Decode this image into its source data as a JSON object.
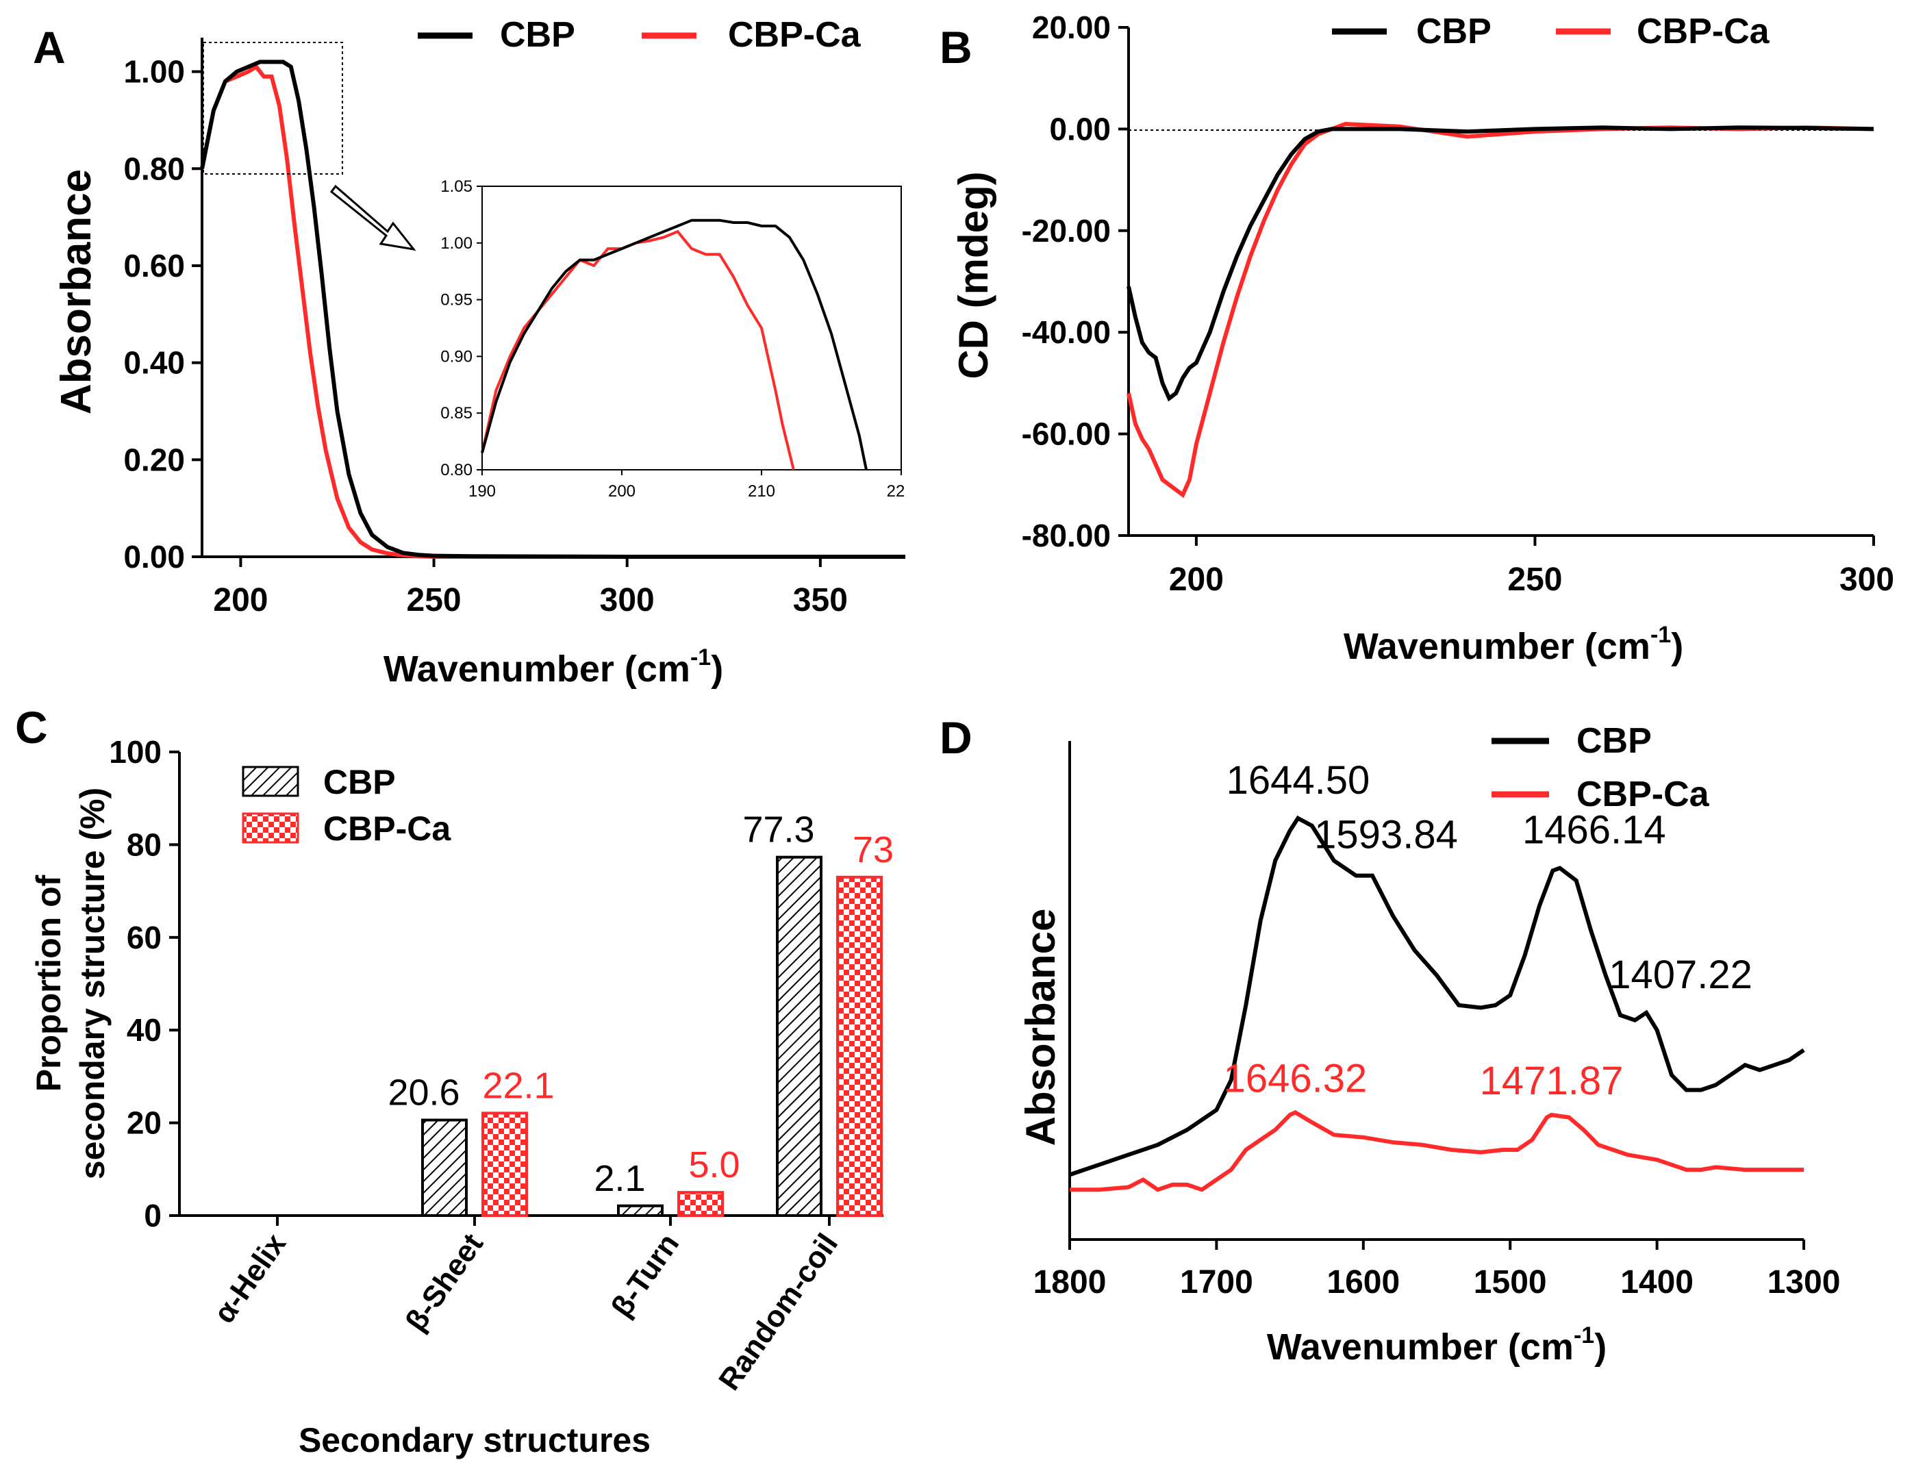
{
  "colors": {
    "cbp": "#000000",
    "cbpca": "#ff2a2a"
  },
  "chart_data": [
    {
      "panel": "A",
      "type": "line",
      "xlabel_main": "Wavenumber (cm",
      "xlabel_sup": "-1",
      "xlabel_close": ")",
      "ylabel": "Absorbance",
      "xlim": [
        190,
        372
      ],
      "ylim": [
        0,
        1.07
      ],
      "xticks": [
        "200",
        "250",
        "300",
        "350"
      ],
      "yticks": [
        "0.00",
        "0.20",
        "0.40",
        "0.60",
        "0.80",
        "1.00"
      ],
      "legend": [
        "CBP",
        "CBP-Ca"
      ],
      "series": [
        {
          "name": "CBP",
          "x": [
            190,
            193,
            196,
            199,
            202,
            205,
            208,
            211,
            213,
            215,
            217,
            219,
            221,
            223,
            225,
            228,
            231,
            234,
            238,
            242,
            246,
            250,
            260,
            300,
            372
          ],
          "y": [
            0.8,
            0.92,
            0.98,
            1.0,
            1.01,
            1.02,
            1.02,
            1.02,
            1.01,
            0.94,
            0.84,
            0.72,
            0.58,
            0.43,
            0.3,
            0.17,
            0.09,
            0.045,
            0.02,
            0.008,
            0.004,
            0.002,
            0.001,
            0.0,
            0.0
          ]
        },
        {
          "name": "CBP-Ca",
          "x": [
            190,
            193,
            196,
            199,
            202,
            204,
            206,
            208,
            210,
            212,
            214,
            216,
            218,
            220,
            222,
            225,
            228,
            231,
            234,
            238,
            242,
            246,
            250,
            300,
            372
          ],
          "y": [
            0.8,
            0.92,
            0.98,
            0.99,
            1.0,
            1.01,
            0.99,
            0.99,
            0.93,
            0.82,
            0.68,
            0.55,
            0.42,
            0.31,
            0.22,
            0.12,
            0.06,
            0.03,
            0.015,
            0.007,
            0.003,
            0.001,
            0.0,
            0.0,
            0.0
          ]
        }
      ],
      "inset": {
        "xlim": [
          190,
          220
        ],
        "ylim": [
          0.8,
          1.05
        ],
        "xticks": [
          "190",
          "200",
          "210",
          "22"
        ],
        "yticks": [
          "0.80",
          "0.85",
          "0.90",
          "0.95",
          "1.00",
          "1.05"
        ],
        "series": [
          {
            "name": "CBP",
            "x": [
              190,
              191,
              192,
              193,
              194,
              195,
              196,
              197,
              198,
              199,
              200,
              201,
              202,
              203,
              204,
              205,
              206,
              207,
              208,
              209,
              210,
              211,
              212,
              213,
              214,
              215,
              216,
              217,
              217.5
            ],
            "y": [
              0.815,
              0.86,
              0.895,
              0.92,
              0.94,
              0.96,
              0.975,
              0.985,
              0.985,
              0.99,
              0.995,
              1.0,
              1.005,
              1.01,
              1.015,
              1.02,
              1.02,
              1.02,
              1.018,
              1.018,
              1.015,
              1.015,
              1.005,
              0.985,
              0.955,
              0.92,
              0.875,
              0.83,
              0.8
            ]
          },
          {
            "name": "CBP-Ca",
            "x": [
              190,
              191,
              192,
              193,
              194,
              195,
              196,
              197,
              198,
              199,
              200,
              201,
              202,
              203,
              204,
              205,
              206,
              207,
              208,
              209,
              210,
              211,
              211.5,
              212.3
            ],
            "y": [
              0.815,
              0.87,
              0.9,
              0.925,
              0.94,
              0.955,
              0.97,
              0.985,
              0.98,
              0.995,
              0.995,
              1.0,
              1.002,
              1.005,
              1.01,
              0.995,
              0.99,
              0.99,
              0.97,
              0.945,
              0.925,
              0.87,
              0.84,
              0.8
            ]
          }
        ]
      }
    },
    {
      "panel": "B",
      "type": "line",
      "xlabel_main": "Wavenumber (cm",
      "xlabel_sup": "-1",
      "xlabel_close": ")",
      "ylabel": "CD (mdeg)",
      "xlim": [
        190,
        300
      ],
      "ylim": [
        -80,
        20
      ],
      "xticks": [
        "200",
        "250",
        "300"
      ],
      "yticks": [
        "-80.00",
        "-60.00",
        "-40.00",
        "-20.00",
        "0.00",
        "20.00"
      ],
      "legend": [
        "CBP",
        "CBP-Ca"
      ],
      "series": [
        {
          "name": "CBP",
          "x": [
            190,
            191,
            192,
            193,
            194,
            195,
            196,
            197,
            198,
            199,
            200,
            202,
            204,
            206,
            208,
            210,
            212,
            214,
            216,
            218,
            220,
            230,
            240,
            250,
            260,
            270,
            280,
            290,
            300
          ],
          "y": [
            -31,
            -37,
            -42,
            -44,
            -45,
            -50,
            -53,
            -52,
            -49,
            -47,
            -46,
            -40,
            -32,
            -25,
            -19,
            -14,
            -9,
            -5,
            -2,
            -0.5,
            0,
            0,
            -0.5,
            0,
            0.3,
            0,
            0.3,
            0.2,
            0
          ]
        },
        {
          "name": "CBP-Ca",
          "x": [
            190,
            191,
            192,
            193,
            194,
            195,
            196,
            197,
            198,
            199,
            200,
            202,
            204,
            206,
            208,
            210,
            212,
            214,
            216,
            218,
            220,
            222,
            230,
            240,
            250,
            260,
            270,
            280,
            290,
            300
          ],
          "y": [
            -52,
            -58,
            -61,
            -63,
            -66,
            -69,
            -70,
            -71,
            -72,
            -69,
            -62,
            -52,
            -42,
            -33,
            -25,
            -18,
            -12,
            -7,
            -3,
            -1,
            0,
            1,
            0.5,
            -1.5,
            -0.5,
            0,
            0.3,
            0,
            0.3,
            0
          ]
        }
      ]
    },
    {
      "panel": "C",
      "type": "bar",
      "xlabel": "Secondary structures",
      "ylabel_line1": "Proportion of",
      "ylabel_line2": "secondary structure (%)",
      "ylim": [
        0,
        100
      ],
      "yticks": [
        "0",
        "20",
        "40",
        "60",
        "80",
        "100"
      ],
      "categories": [
        "α-Helix",
        "β-Sheet",
        "β-Turn",
        "Random-coil"
      ],
      "series": [
        {
          "name": "CBP",
          "values": [
            0,
            20.6,
            2.1,
            77.3
          ],
          "labels": [
            "",
            "20.6",
            "2.1",
            "77.3"
          ]
        },
        {
          "name": "CBP-Ca",
          "values": [
            0,
            22.1,
            5.0,
            73
          ],
          "labels": [
            "",
            "22.1",
            "5.0",
            "73"
          ]
        }
      ]
    },
    {
      "panel": "D",
      "type": "line",
      "xlabel_main": "Wavenumber (cm",
      "xlabel_sup": "-1",
      "xlabel_close": ")",
      "ylabel": "Absorbance",
      "xlim": [
        1800,
        1300
      ],
      "ylim": [
        0,
        1
      ],
      "xticks": [
        "1800",
        "1700",
        "1600",
        "1500",
        "1400",
        "1300"
      ],
      "legend": [
        "CBP",
        "CBP-Ca"
      ],
      "series": [
        {
          "name": "CBP",
          "x": [
            1800,
            1780,
            1760,
            1740,
            1720,
            1700,
            1690,
            1680,
            1670,
            1660,
            1650,
            1644.5,
            1635,
            1620,
            1605,
            1593.84,
            1580,
            1565,
            1550,
            1535,
            1520,
            1510,
            1500,
            1490,
            1480,
            1471,
            1466.14,
            1455,
            1445,
            1435,
            1425,
            1415,
            1407.22,
            1400,
            1390,
            1380,
            1370,
            1360,
            1350,
            1340,
            1330,
            1320,
            1310,
            1300
          ],
          "y": [
            0.13,
            0.15,
            0.17,
            0.19,
            0.22,
            0.26,
            0.32,
            0.47,
            0.64,
            0.76,
            0.82,
            0.845,
            0.83,
            0.76,
            0.73,
            0.73,
            0.65,
            0.58,
            0.53,
            0.47,
            0.465,
            0.47,
            0.49,
            0.57,
            0.67,
            0.74,
            0.745,
            0.72,
            0.62,
            0.53,
            0.45,
            0.44,
            0.455,
            0.42,
            0.33,
            0.3,
            0.3,
            0.31,
            0.33,
            0.35,
            0.34,
            0.35,
            0.36,
            0.38
          ]
        },
        {
          "name": "CBP-Ca",
          "x": [
            1800,
            1780,
            1760,
            1750,
            1740,
            1730,
            1720,
            1710,
            1700,
            1690,
            1680,
            1670,
            1660,
            1650,
            1646.32,
            1635,
            1620,
            1600,
            1580,
            1560,
            1540,
            1520,
            1505,
            1495,
            1485,
            1475,
            1471.87,
            1460,
            1450,
            1440,
            1430,
            1420,
            1410,
            1400,
            1390,
            1380,
            1370,
            1360,
            1340,
            1320,
            1300
          ],
          "y": [
            0.1,
            0.1,
            0.105,
            0.12,
            0.1,
            0.11,
            0.11,
            0.1,
            0.12,
            0.14,
            0.18,
            0.2,
            0.22,
            0.25,
            0.255,
            0.235,
            0.21,
            0.205,
            0.195,
            0.19,
            0.18,
            0.175,
            0.18,
            0.18,
            0.2,
            0.245,
            0.25,
            0.245,
            0.22,
            0.19,
            0.18,
            0.17,
            0.165,
            0.16,
            0.15,
            0.14,
            0.14,
            0.145,
            0.14,
            0.14,
            0.14
          ]
        }
      ],
      "annotations": [
        {
          "text": "1644.50",
          "series": "CBP",
          "x": 1644.5
        },
        {
          "text": "1593.84",
          "series": "CBP",
          "x": 1593.84
        },
        {
          "text": "1466.14",
          "series": "CBP",
          "x": 1466.14
        },
        {
          "text": "1407.22",
          "series": "CBP",
          "x": 1407.22
        },
        {
          "text": "1646.32",
          "series": "CBP-Ca",
          "x": 1646.32
        },
        {
          "text": "1471.87",
          "series": "CBP-Ca",
          "x": 1471.87
        }
      ]
    }
  ],
  "panel_labels": [
    "A",
    "B",
    "C",
    "D"
  ]
}
